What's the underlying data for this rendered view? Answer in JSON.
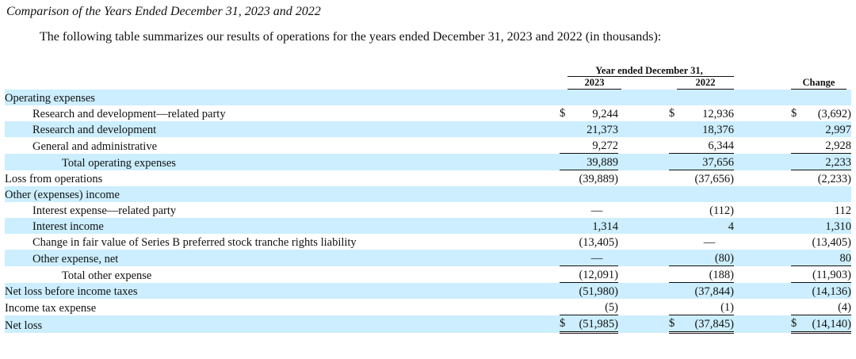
{
  "heading": "Comparison of the Years Ended December 31, 2023 and 2022",
  "intro": "The following table summarizes our results of operations for the years ended December 31, 2023 and 2022 (in thousands):",
  "header": {
    "group": "Year ended December 31,",
    "y2023": "2023",
    "y2022": "2022",
    "change": "Change"
  },
  "rows": [
    {
      "label": "Operating expenses",
      "y2023": "",
      "y2022": "",
      "change": ""
    },
    {
      "label": "Research and development—related party",
      "y2023": "9,244",
      "y2022": "12,936",
      "change": "(3,692)",
      "sym": "$"
    },
    {
      "label": "Research and development",
      "y2023": "21,373",
      "y2022": "18,376",
      "change": "2,997"
    },
    {
      "label": "General and administrative",
      "y2023": "9,272",
      "y2022": "6,344",
      "change": "2,928"
    },
    {
      "label": "Total operating expenses",
      "y2023": "39,889",
      "y2022": "37,656",
      "change": "2,233"
    },
    {
      "label": "Loss from operations",
      "y2023": "(39,889)",
      "y2022": "(37,656)",
      "change": "(2,233)"
    },
    {
      "label": "Other (expenses) income",
      "y2023": "",
      "y2022": "",
      "change": ""
    },
    {
      "label": "Interest expense—related party",
      "y2023": "—",
      "y2022": "(112)",
      "change": "112"
    },
    {
      "label": "Interest income",
      "y2023": "1,314",
      "y2022": "4",
      "change": "1,310"
    },
    {
      "label": "Change in fair value of Series B preferred stock tranche rights liability",
      "y2023": "(13,405)",
      "y2022": "—",
      "change": "(13,405)"
    },
    {
      "label": "Other expense, net",
      "y2023": "—",
      "y2022": "(80)",
      "change": "80"
    },
    {
      "label": "Total other expense",
      "y2023": "(12,091)",
      "y2022": "(188)",
      "change": "(11,903)"
    },
    {
      "label": "Net loss before income taxes",
      "y2023": "(51,980)",
      "y2022": "(37,844)",
      "change": "(14,136)"
    },
    {
      "label": "Income tax expense",
      "y2023": "(5)",
      "y2022": "(1)",
      "change": "(4)"
    },
    {
      "label": "Net loss",
      "y2023": "(51,985)",
      "y2022": "(37,845)",
      "change": "(14,140)",
      "sym": "$"
    }
  ],
  "colors": {
    "shade": "#cceeff"
  }
}
